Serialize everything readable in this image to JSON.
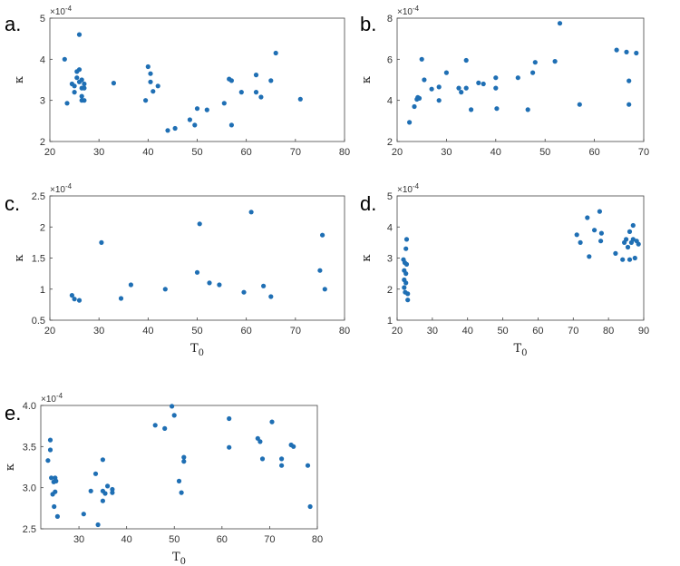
{
  "colors": {
    "point": "#1f6fb4",
    "axis": "#444444"
  },
  "chart_data": [
    {
      "id": "a",
      "type": "scatter",
      "panel_label": "a.",
      "xlabel": "",
      "ylabel": "κ",
      "multiplier": "×10",
      "multiplier_exp": "-4",
      "xlim": [
        20,
        80
      ],
      "ylim": [
        2,
        5
      ],
      "xticks": [
        "20",
        "30",
        "40",
        "50",
        "60",
        "70",
        "80"
      ],
      "yticks": [
        "2",
        "3",
        "4",
        "5"
      ],
      "points": [
        [
          23,
          4.0
        ],
        [
          23.5,
          2.93
        ],
        [
          24.5,
          3.4
        ],
        [
          25,
          3.35
        ],
        [
          25,
          3.2
        ],
        [
          25.5,
          3.7
        ],
        [
          25.5,
          3.55
        ],
        [
          26,
          4.6
        ],
        [
          26,
          3.75
        ],
        [
          26,
          3.45
        ],
        [
          26.5,
          3.5
        ],
        [
          26.5,
          3.3
        ],
        [
          26.5,
          3.1
        ],
        [
          26.5,
          3.0
        ],
        [
          27,
          3.4
        ],
        [
          27,
          3.3
        ],
        [
          27,
          3.0
        ],
        [
          33,
          3.42
        ],
        [
          39.5,
          3.0
        ],
        [
          40,
          3.82
        ],
        [
          40.5,
          3.65
        ],
        [
          40.5,
          3.45
        ],
        [
          41,
          3.22
        ],
        [
          42,
          3.35
        ],
        [
          44,
          2.27
        ],
        [
          45.5,
          2.32
        ],
        [
          48.5,
          2.53
        ],
        [
          49.5,
          2.4
        ],
        [
          50,
          2.8
        ],
        [
          52,
          2.77
        ],
        [
          55.5,
          2.93
        ],
        [
          56.5,
          3.52
        ],
        [
          57,
          3.48
        ],
        [
          57,
          2.4
        ],
        [
          59,
          3.2
        ],
        [
          62,
          3.2
        ],
        [
          62,
          3.62
        ],
        [
          63,
          3.08
        ],
        [
          65,
          3.48
        ],
        [
          66,
          4.15
        ],
        [
          71,
          3.03
        ]
      ]
    },
    {
      "id": "b",
      "type": "scatter",
      "panel_label": "b.",
      "xlabel": "",
      "ylabel": "κ",
      "multiplier": "×10",
      "multiplier_exp": "-4",
      "xlim": [
        20,
        70
      ],
      "ylim": [
        2,
        8
      ],
      "xticks": [
        "20",
        "30",
        "40",
        "50",
        "60",
        "70"
      ],
      "yticks": [
        "2",
        "4",
        "6",
        "8"
      ],
      "points": [
        [
          22.5,
          2.93
        ],
        [
          23.5,
          3.7
        ],
        [
          24,
          4.05
        ],
        [
          24.2,
          4.15
        ],
        [
          24.5,
          4.1
        ],
        [
          25,
          6.0
        ],
        [
          25.5,
          5.0
        ],
        [
          27,
          4.55
        ],
        [
          28.5,
          4.0
        ],
        [
          28.5,
          4.65
        ],
        [
          30,
          5.35
        ],
        [
          32.5,
          4.6
        ],
        [
          33,
          4.4
        ],
        [
          34,
          4.6
        ],
        [
          34,
          5.95
        ],
        [
          35,
          3.55
        ],
        [
          36.5,
          4.85
        ],
        [
          37.5,
          4.8
        ],
        [
          40,
          5.1
        ],
        [
          40,
          4.6
        ],
        [
          40.2,
          3.6
        ],
        [
          44.5,
          5.1
        ],
        [
          46.5,
          3.55
        ],
        [
          47.5,
          5.35
        ],
        [
          48,
          5.85
        ],
        [
          52,
          5.9
        ],
        [
          53,
          7.75
        ],
        [
          57,
          3.8
        ],
        [
          64.5,
          6.45
        ],
        [
          66.5,
          6.35
        ],
        [
          67,
          4.95
        ],
        [
          67,
          3.8
        ],
        [
          68.5,
          6.3
        ]
      ]
    },
    {
      "id": "c",
      "type": "scatter",
      "panel_label": "c.",
      "xlabel": "T",
      "xlabel_sub": "0",
      "ylabel": "κ",
      "multiplier": "×10",
      "multiplier_exp": "-4",
      "xlim": [
        20,
        80
      ],
      "ylim": [
        0.5,
        2.5
      ],
      "xticks": [
        "20",
        "30",
        "40",
        "50",
        "60",
        "70",
        "80"
      ],
      "yticks": [
        "0.5",
        "1",
        "1.5",
        "2",
        "2.5"
      ],
      "points": [
        [
          24.5,
          0.9
        ],
        [
          25,
          0.84
        ],
        [
          26,
          0.82
        ],
        [
          30.5,
          1.75
        ],
        [
          34.5,
          0.85
        ],
        [
          36.5,
          1.07
        ],
        [
          43.5,
          1.0
        ],
        [
          50,
          1.27
        ],
        [
          50.5,
          2.05
        ],
        [
          52.5,
          1.1
        ],
        [
          54.5,
          1.07
        ],
        [
          59.5,
          0.95
        ],
        [
          61,
          2.24
        ],
        [
          63.5,
          1.05
        ],
        [
          65,
          0.88
        ],
        [
          75,
          1.3
        ],
        [
          75.5,
          1.87
        ],
        [
          76,
          1.0
        ]
      ]
    },
    {
      "id": "d",
      "type": "scatter",
      "panel_label": "d.",
      "xlabel": "T",
      "xlabel_sub": "0",
      "ylabel": "κ",
      "multiplier": "×10",
      "multiplier_exp": "-4",
      "xlim": [
        20,
        90
      ],
      "ylim": [
        1,
        5
      ],
      "xticks": [
        "20",
        "30",
        "40",
        "50",
        "60",
        "70",
        "80",
        "90"
      ],
      "yticks": [
        "1",
        "2",
        "3",
        "4",
        "5"
      ],
      "points": [
        [
          21.8,
          2.95
        ],
        [
          22,
          2.6
        ],
        [
          22,
          2.3
        ],
        [
          22,
          2.05
        ],
        [
          22.2,
          2.85
        ],
        [
          22.3,
          1.9
        ],
        [
          22.5,
          3.3
        ],
        [
          22.5,
          2.5
        ],
        [
          22.5,
          2.2
        ],
        [
          22.7,
          3.6
        ],
        [
          22.7,
          2.8
        ],
        [
          23,
          1.85
        ],
        [
          23,
          1.65
        ],
        [
          71,
          3.75
        ],
        [
          72,
          3.5
        ],
        [
          74,
          4.3
        ],
        [
          74.5,
          3.05
        ],
        [
          76,
          3.9
        ],
        [
          77.5,
          4.5
        ],
        [
          77.8,
          3.55
        ],
        [
          78,
          3.8
        ],
        [
          82,
          3.15
        ],
        [
          84,
          2.95
        ],
        [
          84.5,
          3.5
        ],
        [
          85,
          3.6
        ],
        [
          85.5,
          3.35
        ],
        [
          86,
          2.95
        ],
        [
          86,
          3.85
        ],
        [
          86.5,
          3.5
        ],
        [
          87,
          3.6
        ],
        [
          87,
          4.05
        ],
        [
          87.5,
          3.0
        ],
        [
          88,
          3.55
        ],
        [
          88.5,
          3.45
        ]
      ]
    },
    {
      "id": "e",
      "type": "scatter",
      "panel_label": "e.",
      "xlabel": "T",
      "xlabel_sub": "0",
      "ylabel": "κ",
      "multiplier": "×10",
      "multiplier_exp": "-4",
      "xlim": [
        22,
        80
      ],
      "ylim": [
        2.5,
        4.0
      ],
      "xticks": [
        "30",
        "40",
        "50",
        "60",
        "70",
        "80"
      ],
      "yticks": [
        "2.5",
        "3.0",
        "3.5",
        "4.0"
      ],
      "points": [
        [
          23.5,
          3.33
        ],
        [
          24,
          3.58
        ],
        [
          24,
          3.46
        ],
        [
          24.2,
          3.12
        ],
        [
          24.5,
          2.92
        ],
        [
          24.7,
          3.07
        ],
        [
          24.8,
          2.77
        ],
        [
          25,
          3.12
        ],
        [
          25,
          2.95
        ],
        [
          25.2,
          3.08
        ],
        [
          25.5,
          2.65
        ],
        [
          31,
          2.68
        ],
        [
          32.5,
          2.96
        ],
        [
          33.5,
          3.17
        ],
        [
          34,
          2.55
        ],
        [
          35,
          3.34
        ],
        [
          35,
          2.96
        ],
        [
          35,
          2.84
        ],
        [
          35.5,
          2.93
        ],
        [
          36,
          3.02
        ],
        [
          37,
          2.98
        ],
        [
          37,
          2.94
        ],
        [
          46,
          3.76
        ],
        [
          48,
          3.72
        ],
        [
          49.5,
          3.99
        ],
        [
          50,
          3.88
        ],
        [
          51,
          3.08
        ],
        [
          51.5,
          2.94
        ],
        [
          52,
          3.37
        ],
        [
          52,
          3.32
        ],
        [
          61.5,
          3.84
        ],
        [
          61.5,
          3.49
        ],
        [
          67.5,
          3.6
        ],
        [
          68,
          3.56
        ],
        [
          68.5,
          3.35
        ],
        [
          70.5,
          3.8
        ],
        [
          72.5,
          3.35
        ],
        [
          72.5,
          3.27
        ],
        [
          74.5,
          3.52
        ],
        [
          75,
          3.5
        ],
        [
          78,
          3.27
        ],
        [
          78.5,
          2.77
        ]
      ]
    }
  ]
}
